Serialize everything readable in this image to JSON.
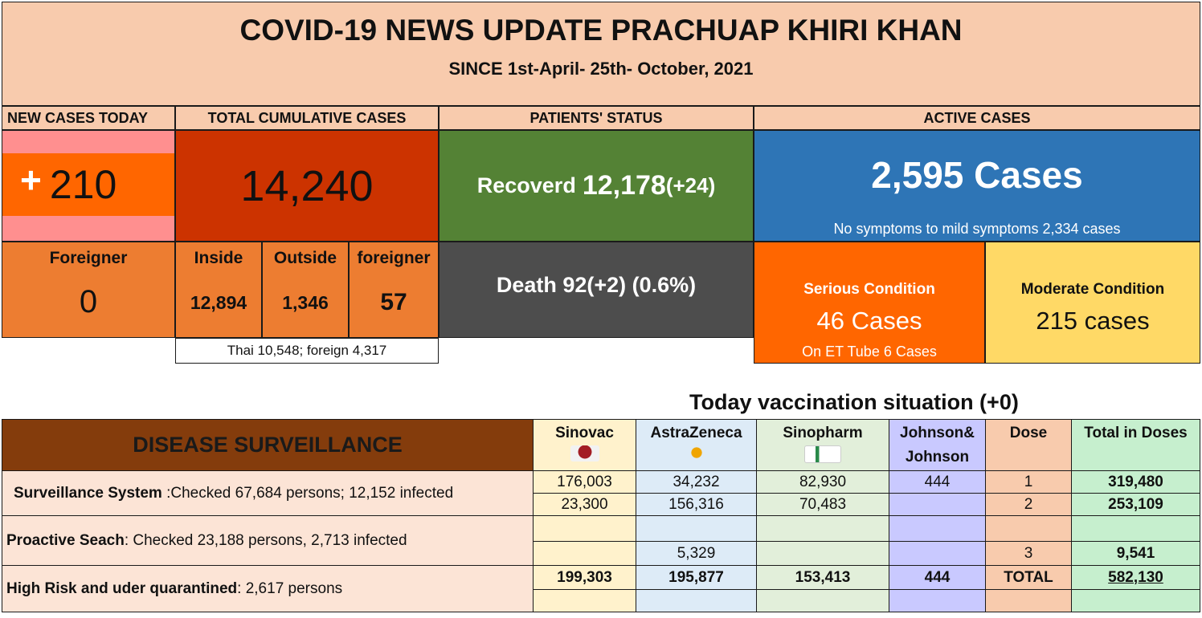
{
  "header": {
    "title": "COVID-19 NEWS UPDATE PRACHUAP KHIRI KHAN",
    "subtitle": "SINCE 1st-April- 25th- October, 2021"
  },
  "labels": {
    "new_cases": "NEW CASES TODAY",
    "total_cumulative": "TOTAL CUMULATIVE CASES",
    "patients_status": "PATIENTS' STATUS",
    "active_cases": "ACTIVE CASES"
  },
  "new_cases": {
    "plus": "+",
    "value": "210",
    "foreigner_label": "Foreigner",
    "foreigner_value": "0"
  },
  "cumulative": {
    "total": "14,240",
    "inside_label": "Inside",
    "inside": "12,894",
    "outside_label": "Outside",
    "outside": "1,346",
    "foreigner_label": "foreigner",
    "foreigner": "57",
    "note": "Thai 10,548; foreign 4,317"
  },
  "status": {
    "recovered_label": "Recoverd",
    "recovered": "12,178",
    "recovered_delta": "(+24)",
    "death": "Death 92(+2) (0.6%)"
  },
  "active": {
    "total": "2,595 Cases",
    "mild": "No symptoms to mild symptoms 2,334 cases",
    "serious_label": "Serious Condition",
    "serious": "46 Cases",
    "et_tube": "On ET Tube 6 Cases",
    "moderate_label": "Moderate Condition",
    "moderate": "215 cases"
  },
  "vaccination": {
    "title": "Today vaccination situation (+0)",
    "section_title": "DISEASE SURVEILLANCE",
    "columns": [
      "Sinovac",
      "AstraZeneca",
      "Sinopharm",
      "Johnson& Johnson",
      "Dose",
      "Total in Doses"
    ],
    "rows": [
      [
        "176,003",
        "34,232",
        "82,930",
        "444",
        "1",
        "319,480"
      ],
      [
        "23,300",
        "156,316",
        "70,483",
        "",
        "2",
        "253,109"
      ],
      [
        "",
        "",
        "",
        "",
        "",
        ""
      ],
      [
        "",
        "5,329",
        "",
        "",
        "3",
        "9,541"
      ],
      [
        "199,303",
        "195,877",
        "153,413",
        "444",
        "TOTAL",
        "582,130"
      ],
      [
        "",
        "",
        "",
        "",
        "",
        ""
      ]
    ],
    "surveillance": {
      "label": "Surveillance System",
      "text": " :Checked 67,684 persons; 12,152 infected"
    },
    "proactive": {
      "label": "Proactive Seach",
      "text": ":  Checked 23,188 persons, 2,713 infected"
    },
    "high_risk": {
      "label": "High Risk and uder quarantined",
      "text": ": 2,617 persons"
    }
  },
  "colors": {
    "peach": "#f8cbad",
    "pink": "#ff8f8f",
    "orange": "#ed7d31",
    "bright_orange": "#ff6600",
    "red": "#cc3300",
    "green": "#548235",
    "gray": "#4d4d4d",
    "blue": "#2e75b6",
    "yellow": "#ffd966",
    "brown": "#843c0c",
    "sinovac": "#fff2cc",
    "astra": "#ddebf7",
    "sinopharm": "#e2efda",
    "jnj": "#c9c9ff",
    "dose": "#f8cbad",
    "total": "#c6efce"
  },
  "icons": [
    "sinovac-logo-icon",
    "astrazeneca-logo-icon",
    "sinopharm-logo-icon"
  ]
}
